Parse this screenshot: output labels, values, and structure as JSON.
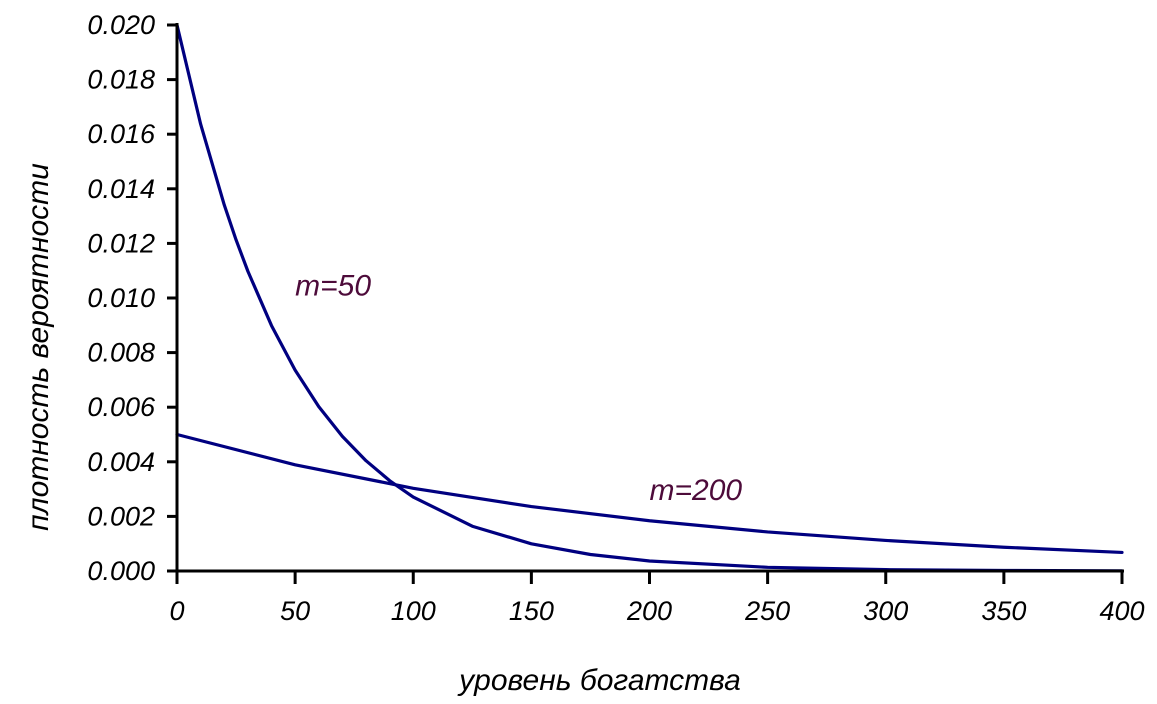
{
  "chart_data": {
    "type": "line",
    "xlabel": "уровень богатства",
    "ylabel": "плотность вероятности",
    "xlim": [
      0,
      400
    ],
    "ylim": [
      0,
      0.02
    ],
    "x_ticks": [
      "0",
      "50",
      "100",
      "150",
      "200",
      "250",
      "300",
      "350",
      "400"
    ],
    "y_ticks": [
      "0.000",
      "0.002",
      "0.004",
      "0.006",
      "0.008",
      "0.010",
      "0.012",
      "0.014",
      "0.016",
      "0.018",
      "0.020"
    ],
    "grid": false,
    "legend": "none",
    "series": [
      {
        "x": [
          0,
          10,
          20,
          25,
          30,
          40,
          50,
          60,
          70,
          80,
          90,
          100,
          125,
          150,
          175,
          200,
          250,
          300,
          350,
          400
        ],
        "y": [
          0.02,
          0.01637,
          0.01341,
          0.01213,
          0.01098,
          0.00899,
          0.00736,
          0.00602,
          0.00493,
          0.00404,
          0.00331,
          0.00271,
          0.00164,
          0.000996,
          0.000604,
          0.000366,
          0.000135,
          4.96e-05,
          1.82e-05,
          6.7e-06
        ],
        "color": "#000080"
      },
      {
        "x": [
          0,
          50,
          100,
          150,
          200,
          250,
          300,
          350,
          400
        ],
        "y": [
          0.005,
          0.00389,
          0.00303,
          0.00236,
          0.00184,
          0.00143,
          0.00112,
          0.00087,
          0.00068
        ],
        "color": "#000080"
      }
    ],
    "annotations": [
      {
        "text": "m=50",
        "x": 50,
        "y": 0.0101,
        "color": "#4d0b3a"
      },
      {
        "text": "m=200",
        "x": 200,
        "y": 0.0026,
        "color": "#4d0b3a"
      }
    ]
  }
}
